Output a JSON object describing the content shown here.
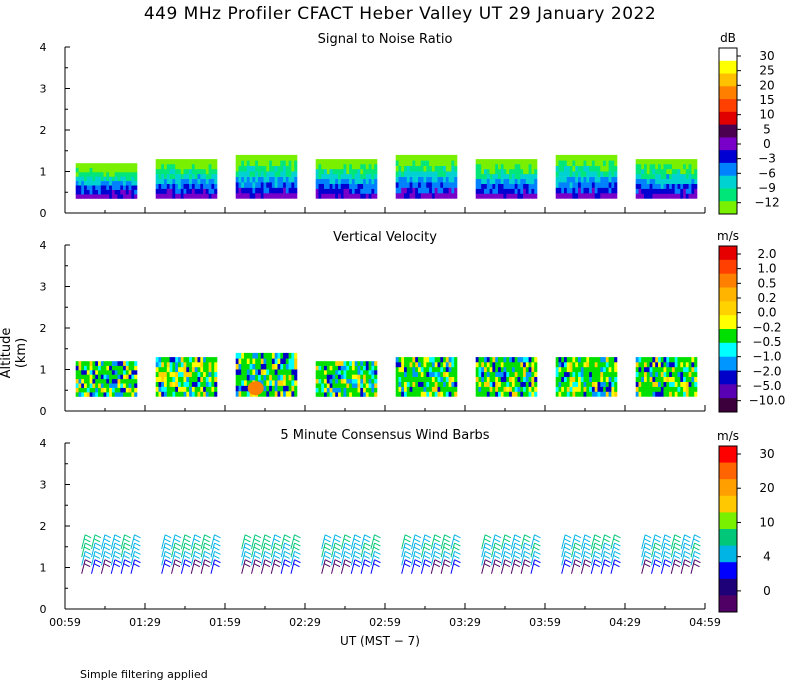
{
  "figure_title": "449 MHz Profiler CFACT Heber Valley UT 29 January 2022",
  "footnote": "Simple filtering applied",
  "ylabel": "Altitude (km)",
  "xlabel": "UT  (MST − 7)",
  "chart_data": [
    {
      "type": "heatmap",
      "title": "Signal to Noise Ratio",
      "x_ticks": [
        "00:59",
        "01:29",
        "01:59",
        "02:29",
        "02:59",
        "03:29",
        "03:59",
        "04:29",
        "04:59"
      ],
      "y_ticks": [
        "0",
        "1",
        "2",
        "3",
        "4"
      ],
      "ylim": [
        0,
        4
      ],
      "colorbar": {
        "unit": "dB",
        "labels": [
          "30",
          "25",
          "20",
          "15",
          "10",
          "5",
          "0",
          "−3",
          "−6",
          "−9",
          "−12"
        ],
        "colors": [
          "#ffffff",
          "#ffff00",
          "#ffc000",
          "#ff8000",
          "#ff4000",
          "#e00000",
          "#4b0050",
          "#7800c8",
          "#0000d2",
          "#0082ff",
          "#00d2d2",
          "#00e678",
          "#78f000"
        ]
      },
      "data_segments": [
        {
          "start": "01:03",
          "end": "01:26",
          "top_km": 1.2
        },
        {
          "start": "01:33",
          "end": "01:56",
          "top_km": 1.3
        },
        {
          "start": "02:03",
          "end": "02:26",
          "top_km": 1.4
        },
        {
          "start": "02:33",
          "end": "02:56",
          "top_km": 1.3
        },
        {
          "start": "03:03",
          "end": "03:26",
          "top_km": 1.4
        },
        {
          "start": "03:33",
          "end": "03:56",
          "top_km": 1.3
        },
        {
          "start": "04:03",
          "end": "04:26",
          "top_km": 1.4
        },
        {
          "start": "04:33",
          "end": "04:56",
          "top_km": 1.3
        }
      ]
    },
    {
      "type": "heatmap",
      "title": "Vertical Velocity",
      "x_ticks": [
        "00:59",
        "01:29",
        "01:59",
        "02:29",
        "02:59",
        "03:29",
        "03:59",
        "04:29",
        "04:59"
      ],
      "y_ticks": [
        "0",
        "1",
        "2",
        "3",
        "4"
      ],
      "ylim": [
        0,
        4
      ],
      "colorbar": {
        "unit": "m/s",
        "labels": [
          "2.0",
          "1.0",
          "0.5",
          "0.2",
          "0.0",
          "−0.2",
          "−0.5",
          "−1.0",
          "−2.0",
          "−5.0",
          "−10.0"
        ],
        "colors": [
          "#e60000",
          "#ff4000",
          "#ff8000",
          "#ffb400",
          "#ffd200",
          "#ffff00",
          "#00e000",
          "#00ffff",
          "#0096ff",
          "#0000c8",
          "#5a00b4",
          "#3c003c"
        ]
      },
      "data_segments": [
        {
          "start": "01:03",
          "end": "01:26",
          "top_km": 1.2
        },
        {
          "start": "01:33",
          "end": "01:56",
          "top_km": 1.3
        },
        {
          "start": "02:03",
          "end": "02:26",
          "top_km": 1.4
        },
        {
          "start": "02:33",
          "end": "02:56",
          "top_km": 1.2
        },
        {
          "start": "03:03",
          "end": "03:26",
          "top_km": 1.3
        },
        {
          "start": "03:33",
          "end": "03:56",
          "top_km": 1.3
        },
        {
          "start": "04:03",
          "end": "04:26",
          "top_km": 1.3
        },
        {
          "start": "04:33",
          "end": "04:56",
          "top_km": 1.3
        }
      ]
    },
    {
      "type": "scatter",
      "title": "5 Minute Consensus Wind Barbs",
      "x_ticks": [
        "00:59",
        "01:29",
        "01:59",
        "02:29",
        "02:59",
        "03:29",
        "03:59",
        "04:29",
        "04:59"
      ],
      "y_ticks": [
        "0",
        "1",
        "2",
        "3",
        "4"
      ],
      "ylim": [
        0,
        4
      ],
      "colorbar": {
        "unit": "m/s",
        "labels": [
          "30",
          "20",
          "10",
          "4",
          "0"
        ],
        "colors": [
          "#ff0000",
          "#ff6400",
          "#ffa000",
          "#ffc800",
          "#78f000",
          "#00c878",
          "#00b4e6",
          "#0000ff",
          "#1e0078",
          "#500064"
        ]
      },
      "barb_groups": [
        {
          "start": "01:03",
          "end": "01:26",
          "top_km": 1.7
        },
        {
          "start": "01:33",
          "end": "01:56",
          "top_km": 1.6
        },
        {
          "start": "02:03",
          "end": "02:26",
          "top_km": 2.0
        },
        {
          "start": "02:33",
          "end": "02:56",
          "top_km": 1.6
        },
        {
          "start": "03:03",
          "end": "03:26",
          "top_km": 1.6
        },
        {
          "start": "03:33",
          "end": "03:56",
          "top_km": 1.6
        },
        {
          "start": "04:03",
          "end": "04:26",
          "top_km": 1.6
        },
        {
          "start": "04:33",
          "end": "04:56",
          "top_km": 1.6
        }
      ]
    }
  ]
}
